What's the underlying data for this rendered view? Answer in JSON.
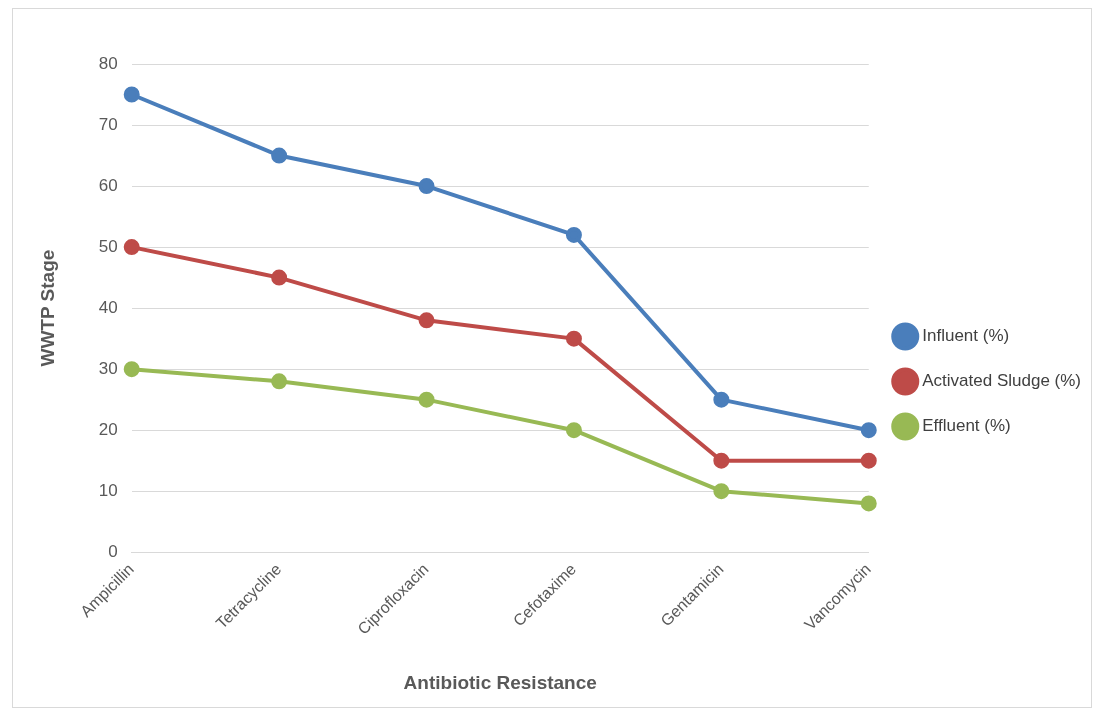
{
  "chart_data": {
    "type": "line",
    "xlabel": "Antibiotic Resistance",
    "ylabel": "WWTP Stage",
    "categories": [
      "Ampicillin",
      "Tetracycline",
      "Ciprofloxacin",
      "Cefotaxime",
      "Gentamicin",
      "Vancomycin"
    ],
    "series": [
      {
        "name": "Influent (%)",
        "color": "#4a7ebb",
        "values": [
          75,
          65,
          60,
          52,
          25,
          20
        ]
      },
      {
        "name": "Activated Sludge (%)",
        "color": "#be4b48",
        "values": [
          50,
          45,
          38,
          35,
          15,
          15
        ]
      },
      {
        "name": "Effluent (%)",
        "color": "#98b954",
        "values": [
          30,
          28,
          25,
          20,
          10,
          8
        ]
      }
    ],
    "ylim": [
      0,
      80
    ],
    "yticks": [
      0,
      10,
      20,
      30,
      40,
      50,
      60,
      70,
      80
    ],
    "grid": "y",
    "legend": "right",
    "marker": "circle",
    "line_style": "solid"
  }
}
